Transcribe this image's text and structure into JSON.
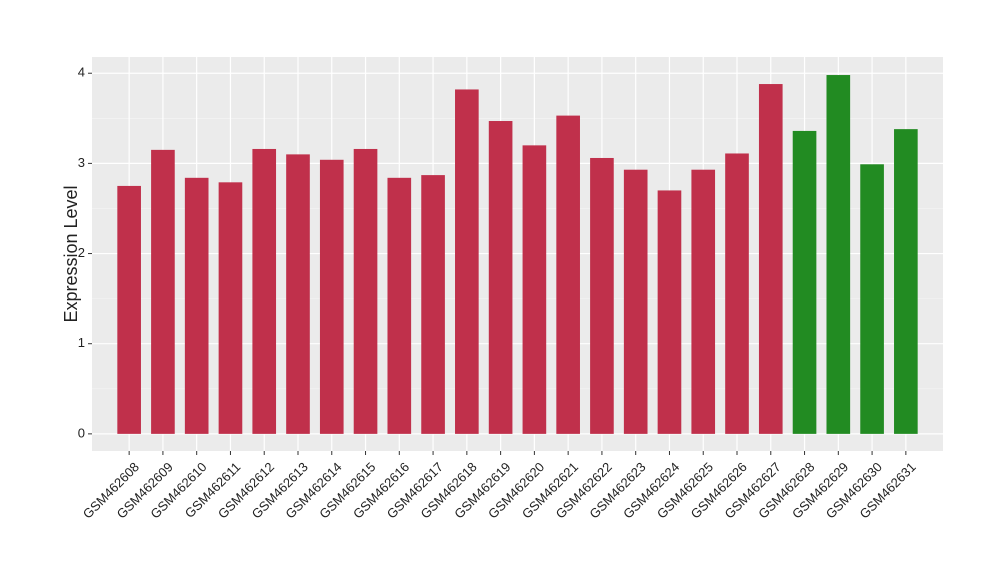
{
  "chart_data": {
    "type": "bar",
    "y_label": "Expression Level",
    "categories": [
      "GSM462608",
      "GSM462609",
      "GSM462610",
      "GSM462611",
      "GSM462612",
      "GSM462613",
      "GSM462614",
      "GSM462615",
      "GSM462616",
      "GSM462617",
      "GSM462618",
      "GSM462619",
      "GSM462620",
      "GSM462621",
      "GSM462622",
      "GSM462623",
      "GSM462624",
      "GSM462625",
      "GSM462626",
      "GSM462627",
      "GSM462628",
      "GSM462629",
      "GSM462630",
      "GSM462631"
    ],
    "values": [
      2.75,
      3.15,
      2.84,
      2.79,
      3.16,
      3.1,
      3.04,
      3.16,
      2.84,
      2.87,
      3.82,
      3.47,
      3.2,
      3.53,
      3.06,
      2.93,
      2.7,
      2.93,
      3.11,
      3.88,
      3.36,
      3.98,
      2.99,
      3.38
    ],
    "colors": [
      "#c0304b",
      "#c0304b",
      "#c0304b",
      "#c0304b",
      "#c0304b",
      "#c0304b",
      "#c0304b",
      "#c0304b",
      "#c0304b",
      "#c0304b",
      "#c0304b",
      "#c0304b",
      "#c0304b",
      "#c0304b",
      "#c0304b",
      "#c0304b",
      "#c0304b",
      "#c0304b",
      "#c0304b",
      "#c0304b",
      "#228b22",
      "#228b22",
      "#228b22",
      "#228b22"
    ],
    "ylim": [
      -0.19,
      4.18
    ],
    "yticks": [
      0,
      1,
      2,
      3,
      4
    ],
    "minor_yticks": [
      0.5,
      1.5,
      2.5,
      3.5
    ],
    "grid": true
  }
}
